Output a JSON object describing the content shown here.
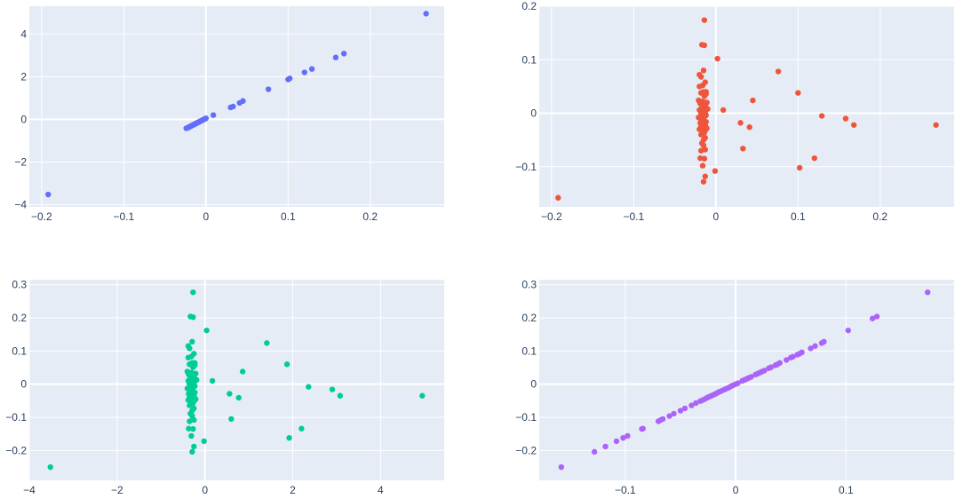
{
  "colors": {
    "panel_background": "#e5ecf6",
    "gridline": "#ffffff",
    "tick_text": "#2a3f5f"
  },
  "chart_data": [
    {
      "type": "scatter",
      "title": "",
      "xlabel": "",
      "ylabel": "",
      "color": "#636efa",
      "xlim": [
        -0.215,
        0.29
      ],
      "ylim": [
        -4.1,
        5.3
      ],
      "xticks": [
        -0.2,
        -0.1,
        0,
        0.1,
        0.2
      ],
      "xtick_labels": [
        "−0.2",
        "−0.1",
        "0",
        "0.1",
        "0.2"
      ],
      "yticks": [
        -4,
        -2,
        0,
        2,
        4
      ],
      "ytick_labels": [
        "−4",
        "−2",
        "0",
        "2",
        "4"
      ],
      "grid": true,
      "legend": "none",
      "x": [
        -0.192,
        -0.024,
        -0.022,
        -0.021,
        -0.02,
        -0.019,
        -0.018,
        -0.017,
        -0.016,
        -0.015,
        -0.014,
        -0.013,
        -0.012,
        -0.011,
        -0.01,
        -0.009,
        -0.008,
        -0.007,
        -0.006,
        -0.005,
        -0.004,
        -0.003,
        -0.002,
        -0.001,
        0.0,
        0.009,
        0.03,
        0.033,
        0.041,
        0.045,
        0.076,
        0.1,
        0.102,
        0.12,
        0.129,
        0.158,
        0.168,
        0.268
      ],
      "y": [
        -3.52,
        -0.42,
        -0.39,
        -0.37,
        -0.35,
        -0.33,
        -0.31,
        -0.29,
        -0.27,
        -0.25,
        -0.23,
        -0.21,
        -0.19,
        -0.17,
        -0.15,
        -0.13,
        -0.11,
        -0.09,
        -0.07,
        -0.05,
        -0.03,
        -0.01,
        0.01,
        0.03,
        0.05,
        0.2,
        0.56,
        0.6,
        0.77,
        0.86,
        1.41,
        1.87,
        1.92,
        2.2,
        2.36,
        2.9,
        3.08,
        4.95
      ]
    },
    {
      "type": "scatter",
      "title": "",
      "xlabel": "",
      "ylabel": "",
      "color": "#ef553b",
      "xlim": [
        -0.215,
        0.29
      ],
      "ylim": [
        -0.175,
        0.2
      ],
      "xticks": [
        -0.2,
        -0.1,
        0,
        0.1,
        0.2
      ],
      "xtick_labels": [
        "−0.2",
        "−0.1",
        "0",
        "0.1",
        "0.2"
      ],
      "yticks": [
        -0.1,
        0,
        0.1,
        0.2
      ],
      "ytick_labels": [
        "−0.1",
        "0",
        "0.1",
        "0.2"
      ],
      "grid": true,
      "legend": "none",
      "x": [
        -0.192,
        -0.014,
        -0.017,
        -0.014,
        -0.02,
        -0.018,
        -0.015,
        -0.013,
        -0.02,
        -0.016,
        -0.012,
        -0.018,
        -0.014,
        -0.021,
        -0.016,
        -0.011,
        -0.019,
        -0.013,
        -0.015,
        -0.017,
        -0.01,
        -0.02,
        -0.016,
        -0.013,
        -0.018,
        -0.014,
        -0.012,
        -0.016,
        -0.021,
        -0.015,
        -0.017,
        -0.014,
        -0.012,
        -0.019,
        -0.016,
        -0.013,
        -0.018,
        -0.015,
        -0.011,
        -0.02,
        -0.016,
        -0.014,
        -0.018,
        -0.013,
        -0.015,
        -0.017,
        -0.015,
        -0.013,
        -0.018,
        -0.014,
        -0.016,
        -0.019,
        -0.013,
        -0.015,
        -0.014,
        -0.015,
        -0.012,
        -0.012,
        0.002,
        -0.001,
        0.009,
        0.03,
        0.033,
        0.041,
        0.045,
        0.076,
        0.1,
        0.102,
        0.12,
        0.129,
        0.158,
        0.168,
        0.268
      ],
      "y": [
        -0.158,
        0.174,
        0.128,
        0.127,
        0.072,
        0.068,
        0.08,
        0.058,
        0.05,
        0.052,
        0.04,
        0.038,
        0.032,
        0.024,
        0.022,
        0.02,
        0.018,
        0.014,
        0.012,
        0.01,
        0.008,
        0.006,
        0.004,
        0.002,
        0.0,
        -0.002,
        -0.004,
        -0.006,
        -0.008,
        -0.01,
        -0.012,
        -0.014,
        -0.016,
        -0.018,
        -0.02,
        -0.022,
        -0.024,
        -0.026,
        -0.028,
        -0.03,
        -0.032,
        -0.036,
        -0.04,
        -0.046,
        -0.05,
        -0.056,
        -0.06,
        -0.068,
        -0.07,
        -0.085,
        -0.098,
        -0.084,
        -0.118,
        -0.128,
        0.02,
        0.04,
        0.036,
        -0.03,
        0.102,
        -0.108,
        0.006,
        -0.018,
        -0.066,
        -0.026,
        0.024,
        0.078,
        0.038,
        -0.102,
        -0.084,
        -0.005,
        -0.01,
        -0.022,
        -0.022
      ]
    },
    {
      "type": "scatter",
      "title": "",
      "xlabel": "",
      "ylabel": "",
      "color": "#00cc96",
      "xlim": [
        -4,
        5.45
      ],
      "ylim": [
        -0.29,
        0.315
      ],
      "xticks": [
        -4,
        -2,
        0,
        2,
        4
      ],
      "xtick_labels": [
        "−4",
        "−2",
        "0",
        "2",
        "4"
      ],
      "yticks": [
        -0.2,
        -0.1,
        0,
        0.1,
        0.2,
        0.3
      ],
      "ytick_labels": [
        "−0.2",
        "−0.1",
        "0",
        "0.1",
        "0.2",
        "0.3"
      ],
      "grid": true,
      "legend": "none",
      "x": [
        -3.52,
        -0.27,
        -0.33,
        -0.27,
        -0.38,
        -0.35,
        -0.29,
        -0.25,
        -0.38,
        -0.31,
        -0.23,
        -0.35,
        -0.27,
        -0.4,
        -0.31,
        -0.21,
        -0.37,
        -0.25,
        -0.29,
        -0.33,
        -0.19,
        -0.38,
        -0.31,
        -0.25,
        -0.35,
        -0.27,
        -0.23,
        -0.31,
        -0.4,
        -0.29,
        -0.33,
        -0.27,
        -0.23,
        -0.37,
        -0.31,
        -0.25,
        -0.35,
        -0.29,
        -0.21,
        -0.38,
        -0.31,
        -0.27,
        -0.35,
        -0.25,
        -0.29,
        -0.33,
        -0.29,
        -0.25,
        -0.35,
        -0.27,
        -0.31,
        -0.37,
        -0.25,
        -0.29,
        -0.27,
        -0.29,
        -0.23,
        -0.23,
        0.04,
        -0.02,
        0.17,
        0.56,
        0.6,
        0.77,
        0.86,
        1.41,
        1.87,
        1.92,
        2.2,
        2.36,
        2.9,
        3.08,
        4.95
      ],
      "y": [
        -0.25,
        0.277,
        0.204,
        0.202,
        0.115,
        0.108,
        0.128,
        0.092,
        0.08,
        0.083,
        0.064,
        0.06,
        0.051,
        0.038,
        0.035,
        0.032,
        0.029,
        0.022,
        0.019,
        0.016,
        0.013,
        0.01,
        0.006,
        0.003,
        0.0,
        -0.003,
        -0.006,
        -0.01,
        -0.013,
        -0.016,
        -0.019,
        -0.022,
        -0.025,
        -0.029,
        -0.032,
        -0.035,
        -0.038,
        -0.041,
        -0.045,
        -0.048,
        -0.051,
        -0.057,
        -0.064,
        -0.073,
        -0.08,
        -0.089,
        -0.096,
        -0.108,
        -0.112,
        -0.135,
        -0.156,
        -0.134,
        -0.188,
        -0.204,
        0.032,
        0.064,
        0.057,
        -0.048,
        0.162,
        -0.172,
        0.01,
        -0.029,
        -0.105,
        -0.041,
        0.038,
        0.124,
        0.06,
        -0.162,
        -0.134,
        -0.008,
        -0.016,
        -0.035,
        -0.035
      ]
    },
    {
      "type": "scatter",
      "title": "",
      "xlabel": "",
      "ylabel": "",
      "color": "#ab63fa",
      "xlim": [
        -0.178,
        0.198
      ],
      "ylim": [
        -0.29,
        0.315
      ],
      "xticks": [
        -0.1,
        0,
        0.1
      ],
      "xtick_labels": [
        "−0.1",
        "0",
        "0.1"
      ],
      "yticks": [
        -0.2,
        -0.1,
        0,
        0.1,
        0.2,
        0.3
      ],
      "ytick_labels": [
        "−0.2",
        "−0.1",
        "0",
        "0.1",
        "0.2",
        "0.3"
      ],
      "grid": true,
      "legend": "none",
      "x": [
        -0.158,
        -0.128,
        -0.118,
        -0.108,
        -0.102,
        -0.098,
        -0.085,
        -0.084,
        -0.07,
        -0.068,
        -0.066,
        -0.06,
        -0.056,
        -0.05,
        -0.046,
        -0.04,
        -0.036,
        -0.032,
        -0.03,
        -0.028,
        -0.026,
        -0.024,
        -0.022,
        -0.02,
        -0.018,
        -0.016,
        -0.014,
        -0.012,
        -0.01,
        -0.008,
        -0.006,
        -0.004,
        -0.002,
        0.0,
        0.002,
        0.006,
        0.008,
        0.01,
        0.012,
        0.014,
        0.018,
        0.02,
        0.022,
        0.024,
        0.026,
        0.03,
        0.032,
        0.036,
        0.038,
        0.04,
        0.046,
        0.05,
        0.052,
        0.056,
        0.058,
        0.06,
        0.068,
        0.072,
        0.078,
        0.08,
        0.102,
        0.124,
        0.128,
        0.174
      ],
      "y": [
        -0.25,
        -0.204,
        -0.188,
        -0.172,
        -0.162,
        -0.156,
        -0.135,
        -0.134,
        -0.112,
        -0.108,
        -0.105,
        -0.096,
        -0.089,
        -0.08,
        -0.073,
        -0.064,
        -0.057,
        -0.051,
        -0.048,
        -0.045,
        -0.041,
        -0.038,
        -0.035,
        -0.032,
        -0.029,
        -0.025,
        -0.022,
        -0.019,
        -0.016,
        -0.013,
        -0.01,
        -0.006,
        -0.003,
        0.0,
        0.003,
        0.01,
        0.013,
        0.016,
        0.019,
        0.022,
        0.029,
        0.032,
        0.035,
        0.038,
        0.041,
        0.048,
        0.051,
        0.057,
        0.06,
        0.064,
        0.073,
        0.08,
        0.083,
        0.089,
        0.092,
        0.096,
        0.108,
        0.115,
        0.124,
        0.128,
        0.162,
        0.198,
        0.204,
        0.277
      ]
    }
  ]
}
